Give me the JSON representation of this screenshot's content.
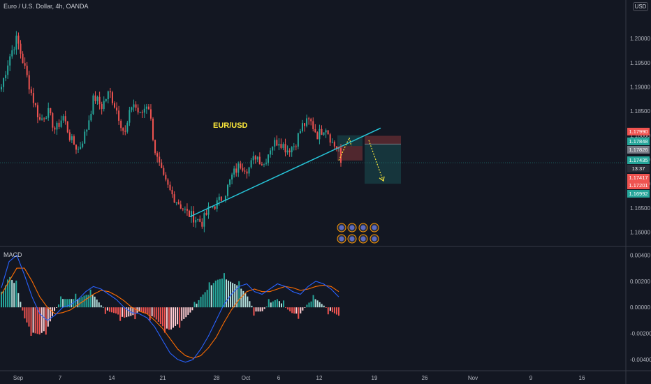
{
  "header": {
    "title": "Euro / U.S. Dollar, 4h, OANDA",
    "currency": "USD"
  },
  "annotation": {
    "pair_label": "EUR/USD",
    "color": "#ffeb3b"
  },
  "colors": {
    "background": "#131722",
    "up": "#26a69a",
    "down": "#ef5350",
    "trendline": "#26c6da",
    "macd_line": "#2962ff",
    "signal_line": "#ff6d00"
  },
  "chart_data": [
    {
      "type": "candlestick",
      "title": "Euro / U.S. Dollar, 4h, OANDA",
      "x_ticks": [
        "Sep",
        "7",
        "14",
        "21",
        "28",
        "Oct",
        "6",
        "12",
        "19",
        "26",
        "Nov",
        "9",
        "16"
      ],
      "y_ticks": [
        "1.20000",
        "1.19500",
        "1.19000",
        "1.18500",
        "1.18000",
        "1.17500",
        "1.17000",
        "1.16500",
        "1.16000"
      ],
      "ylim": [
        1.1572,
        1.2065
      ],
      "ohlc_anchor_closes": [
        1.19,
        1.196,
        1.2,
        1.194,
        1.188,
        1.183,
        1.185,
        1.181,
        1.184,
        1.179,
        1.177,
        1.181,
        1.188,
        1.186,
        1.189,
        1.185,
        1.18,
        1.187,
        1.184,
        1.187,
        1.176,
        1.171,
        1.168,
        1.166,
        1.164,
        1.163,
        1.162,
        1.165,
        1.166,
        1.168,
        1.172,
        1.174,
        1.173,
        1.176,
        1.174,
        1.178,
        1.179,
        1.177,
        1.178,
        1.182,
        1.183,
        1.18,
        1.182,
        1.178,
        1.177
      ],
      "last_price": 1.17435,
      "trendline": [
        [
          1.1632
        ],
        [
          1.1815
        ]
      ],
      "price_labels": [
        {
          "value": "1.17990",
          "color": "#ef5350"
        },
        {
          "value": "1.17848",
          "color": "#26a69a"
        },
        {
          "value": "1.17826",
          "color": "#787b86"
        },
        {
          "value": "1.17435",
          "color": "#26a69a"
        },
        {
          "value": "13:37",
          "color": "#2a2e39"
        },
        {
          "value": "1.17417",
          "color": "#ef5350"
        },
        {
          "value": "1.17201",
          "color": "#ef5350"
        },
        {
          "value": "1.16992",
          "color": "#26a69a"
        }
      ],
      "positions": [
        {
          "entry": 1.1778,
          "target": 1.18,
          "stop": 1.1748
        },
        {
          "entry": 1.1782,
          "stop": 1.1799,
          "target": 1.17
        }
      ]
    },
    {
      "type": "line",
      "title": "MACD",
      "y_ticks": [
        "0.00400",
        "0.00200",
        "0.00000",
        "-0.00200",
        "-0.00400"
      ],
      "ylim": [
        -0.0048,
        0.0045
      ],
      "series": [
        {
          "name": "MACD",
          "color": "#2962ff",
          "values": [
            0.0015,
            0.0035,
            0.004,
            0.0025,
            0.0008,
            -0.0005,
            -0.001,
            -0.0006,
            0.0,
            0.0002,
            0.0006,
            0.0012,
            0.0016,
            0.0014,
            0.001,
            0.0006,
            0.0,
            -0.0004,
            -0.0005,
            -0.0008,
            -0.0015,
            -0.0025,
            -0.0035,
            -0.004,
            -0.0042,
            -0.004,
            -0.0032,
            -0.0022,
            -0.001,
            0.0002,
            0.001,
            0.0016,
            0.0018,
            0.0012,
            0.001,
            0.0014,
            0.0018,
            0.0016,
            0.0012,
            0.001,
            0.0016,
            0.002,
            0.0018,
            0.0014,
            0.0008
          ]
        },
        {
          "name": "Signal",
          "color": "#ff6d00",
          "values": [
            0.001,
            0.002,
            0.003,
            0.003,
            0.002,
            0.0008,
            0.0,
            -0.0005,
            -0.0004,
            -0.0002,
            0.0002,
            0.0006,
            0.001,
            0.0013,
            0.0012,
            0.0009,
            0.0005,
            0.0,
            -0.0003,
            -0.0005,
            -0.001,
            -0.0016,
            -0.0024,
            -0.0032,
            -0.0037,
            -0.0039,
            -0.0037,
            -0.0031,
            -0.0023,
            -0.0012,
            -0.0002,
            0.0006,
            0.0012,
            0.0014,
            0.0012,
            0.0012,
            0.0014,
            0.0016,
            0.0015,
            0.0013,
            0.0014,
            0.0016,
            0.0017,
            0.0016,
            0.0012
          ]
        }
      ]
    }
  ]
}
